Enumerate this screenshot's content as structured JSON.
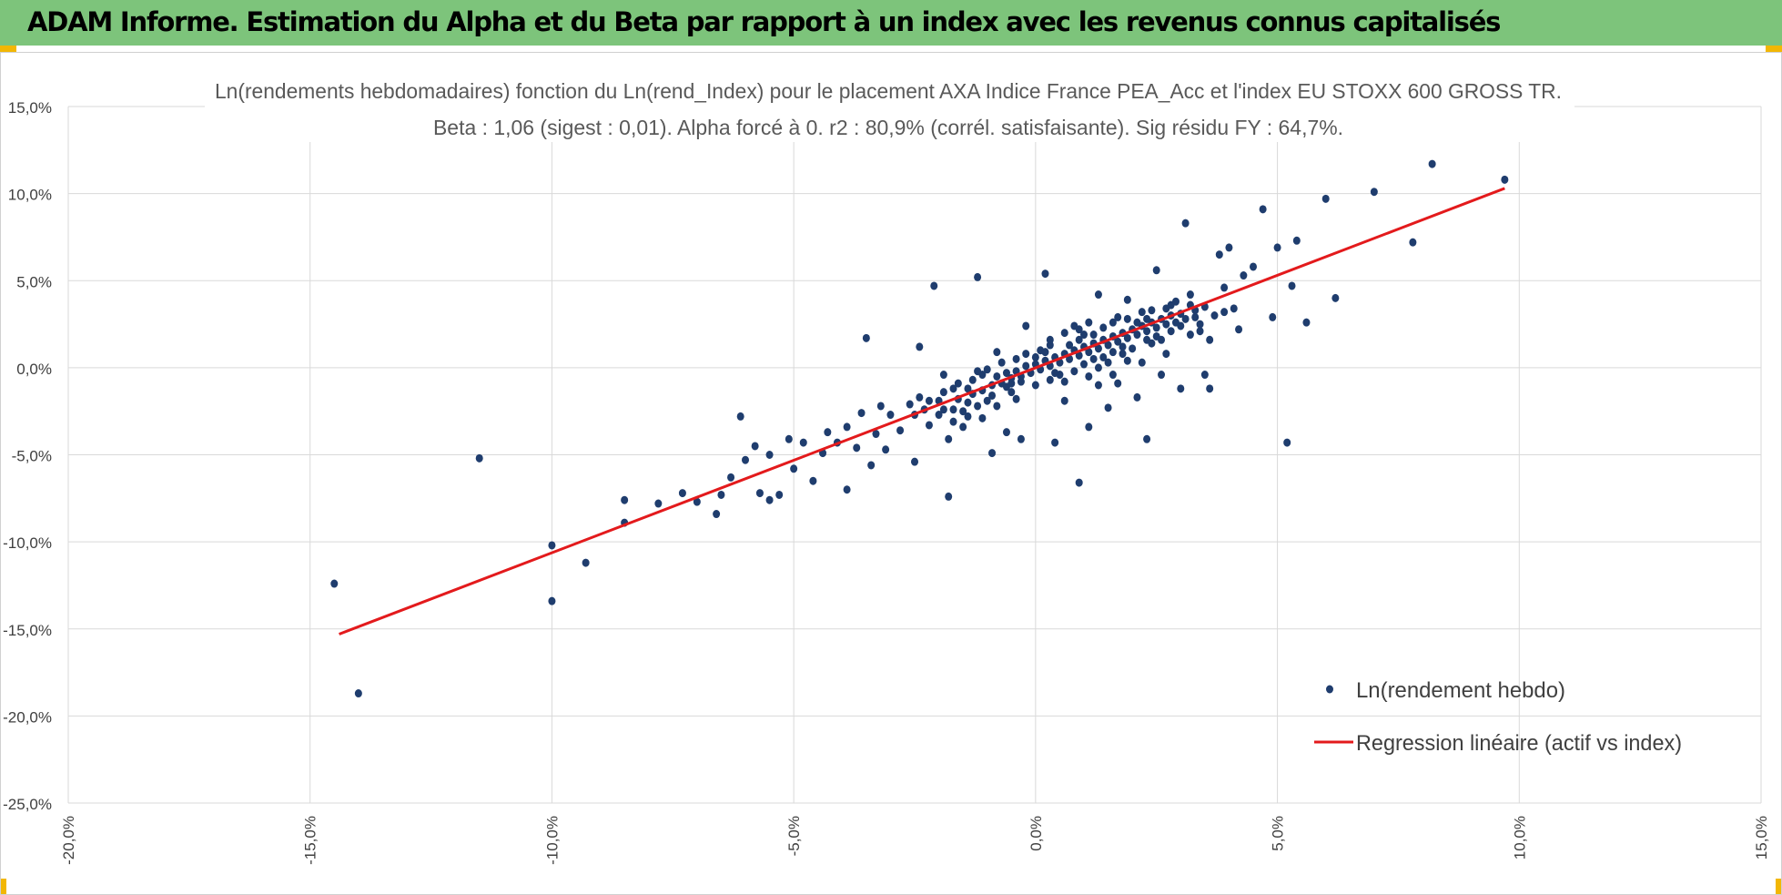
{
  "header": {
    "title": "ADAM Informe. Estimation du Alpha et du Beta par rapport à un index avec les revenus connus capitalisés"
  },
  "colors": {
    "header_bg": "#7dc47b",
    "corner_accent": "#f2b705",
    "points": "#1f3d6e",
    "regression": "#e31a1c",
    "grid": "#d9d9d9"
  },
  "chart_data": {
    "type": "scatter",
    "title": "Ln(rendements hebdomadaires) fonction du Ln(rend_Index) pour le placement AXA Indice France PEA_Acc et l'index EU STOXX 600 GROSS TR.",
    "subtitle": "Beta : 1,06 (sigest : 0,01).  Alpha forcé à 0. r2 : 80,9% (corrél. satisfaisante). Sig résidu FY : 64,7%.",
    "xlabel": "",
    "ylabel": "",
    "xlim": [
      -20,
      15
    ],
    "ylim": [
      -25,
      15
    ],
    "x_ticks": [
      "-20,0%",
      "-15,0%",
      "-10,0%",
      "-5,0%",
      "0,0%",
      "5,0%",
      "10,0%",
      "15,0%"
    ],
    "y_ticks": [
      "15,0%",
      "10,0%",
      "5,0%",
      "0,0%",
      "-5,0%",
      "-10,0%",
      "-15,0%",
      "-20,0%",
      "-25,0%"
    ],
    "grid": true,
    "legend_position": "bottom-right",
    "series": [
      {
        "name": "Ln(rendement hebdo)",
        "kind": "points",
        "points": [
          [
            -14.5,
            -12.4
          ],
          [
            -14.0,
            -18.7
          ],
          [
            -11.5,
            -5.2
          ],
          [
            -10.0,
            -10.2
          ],
          [
            -10.0,
            -13.4
          ],
          [
            -9.3,
            -11.2
          ],
          [
            -8.5,
            -7.6
          ],
          [
            -8.5,
            -8.9
          ],
          [
            -7.8,
            -7.8
          ],
          [
            -7.3,
            -7.2
          ],
          [
            -7.0,
            -7.7
          ],
          [
            -6.6,
            -8.4
          ],
          [
            -6.5,
            -7.3
          ],
          [
            -6.3,
            -6.3
          ],
          [
            -6.1,
            -2.8
          ],
          [
            -6.0,
            -5.3
          ],
          [
            -5.8,
            -4.5
          ],
          [
            -5.7,
            -7.2
          ],
          [
            -5.5,
            -7.6
          ],
          [
            -5.5,
            -5.0
          ],
          [
            -5.3,
            -7.3
          ],
          [
            -5.1,
            -4.1
          ],
          [
            -5.0,
            -5.8
          ],
          [
            -4.8,
            -4.3
          ],
          [
            -4.6,
            -6.5
          ],
          [
            -4.4,
            -4.9
          ],
          [
            -4.3,
            -3.7
          ],
          [
            -4.1,
            -4.3
          ],
          [
            -3.9,
            -3.4
          ],
          [
            -3.9,
            -7.0
          ],
          [
            -3.7,
            -4.6
          ],
          [
            -3.6,
            -2.6
          ],
          [
            -3.5,
            1.7
          ],
          [
            -3.4,
            -5.6
          ],
          [
            -3.3,
            -3.8
          ],
          [
            -3.2,
            -2.2
          ],
          [
            -3.1,
            -4.7
          ],
          [
            -3.0,
            -2.7
          ],
          [
            -2.8,
            -3.6
          ],
          [
            -2.6,
            -2.1
          ],
          [
            -2.5,
            -5.4
          ],
          [
            -2.4,
            -1.7
          ],
          [
            -2.4,
            1.2
          ],
          [
            -2.2,
            -3.3
          ],
          [
            -2.1,
            4.7
          ],
          [
            -2.0,
            -2.7
          ],
          [
            -1.9,
            -0.4
          ],
          [
            -1.8,
            -4.1
          ],
          [
            -1.8,
            -7.4
          ],
          [
            -1.7,
            -2.4
          ],
          [
            -1.6,
            -0.9
          ],
          [
            -1.5,
            -3.4
          ],
          [
            -1.4,
            -1.2
          ],
          [
            -1.2,
            5.2
          ],
          [
            -1.1,
            -2.9
          ],
          [
            -0.9,
            -4.9
          ],
          [
            -0.8,
            0.9
          ],
          [
            -0.6,
            -3.7
          ],
          [
            -0.5,
            -0.9
          ],
          [
            -0.3,
            -4.1
          ],
          [
            -0.2,
            2.4
          ],
          [
            0.2,
            5.4
          ],
          [
            0.4,
            -4.3
          ],
          [
            0.6,
            -1.9
          ],
          [
            0.9,
            -6.6
          ],
          [
            1.0,
            1.9
          ],
          [
            1.1,
            -3.4
          ],
          [
            1.3,
            4.2
          ],
          [
            1.5,
            -2.3
          ],
          [
            1.7,
            -0.9
          ],
          [
            1.9,
            3.9
          ],
          [
            2.1,
            -1.7
          ],
          [
            2.3,
            -4.1
          ],
          [
            2.5,
            5.6
          ],
          [
            2.6,
            -0.4
          ],
          [
            2.8,
            3.6
          ],
          [
            3.0,
            -1.2
          ],
          [
            3.1,
            8.3
          ],
          [
            3.2,
            4.2
          ],
          [
            3.3,
            2.9
          ],
          [
            3.5,
            -0.4
          ],
          [
            3.6,
            -1.2
          ],
          [
            3.8,
            6.5
          ],
          [
            3.9,
            4.6
          ],
          [
            4.0,
            6.9
          ],
          [
            4.1,
            3.4
          ],
          [
            4.2,
            2.2
          ],
          [
            4.3,
            5.3
          ],
          [
            4.5,
            5.8
          ],
          [
            4.7,
            9.1
          ],
          [
            4.9,
            2.9
          ],
          [
            5.0,
            6.9
          ],
          [
            5.2,
            -4.3
          ],
          [
            5.3,
            4.7
          ],
          [
            5.4,
            7.3
          ],
          [
            5.6,
            2.6
          ],
          [
            6.0,
            9.7
          ],
          [
            6.2,
            4.0
          ],
          [
            7.0,
            10.1
          ],
          [
            7.8,
            7.2
          ],
          [
            8.2,
            11.7
          ],
          [
            9.7,
            10.8
          ],
          [
            -1.6,
            -1.8
          ],
          [
            -1.3,
            -1.5
          ],
          [
            -1.1,
            -1.3
          ],
          [
            -0.9,
            -1.0
          ],
          [
            -0.8,
            -0.5
          ],
          [
            -0.7,
            -0.9
          ],
          [
            -0.6,
            -0.3
          ],
          [
            -0.5,
            -0.6
          ],
          [
            -0.4,
            -0.2
          ],
          [
            -0.3,
            -0.5
          ],
          [
            -0.2,
            0.1
          ],
          [
            -0.1,
            -0.3
          ],
          [
            0.0,
            0.2
          ],
          [
            0.1,
            -0.1
          ],
          [
            0.2,
            0.4
          ],
          [
            0.3,
            0.1
          ],
          [
            0.4,
            0.6
          ],
          [
            0.5,
            0.3
          ],
          [
            0.6,
            0.8
          ],
          [
            0.7,
            0.5
          ],
          [
            0.8,
            1.0
          ],
          [
            0.9,
            0.7
          ],
          [
            1.0,
            1.2
          ],
          [
            1.1,
            0.9
          ],
          [
            1.2,
            1.4
          ],
          [
            1.3,
            1.1
          ],
          [
            1.4,
            1.6
          ],
          [
            1.5,
            1.3
          ],
          [
            1.6,
            1.8
          ],
          [
            1.7,
            1.5
          ],
          [
            1.8,
            2.0
          ],
          [
            1.9,
            1.7
          ],
          [
            2.0,
            2.2
          ],
          [
            2.1,
            1.9
          ],
          [
            2.2,
            2.4
          ],
          [
            2.3,
            2.1
          ],
          [
            2.4,
            2.6
          ],
          [
            2.5,
            2.3
          ],
          [
            2.6,
            2.8
          ],
          [
            2.7,
            2.5
          ],
          [
            2.8,
            3.0
          ],
          [
            2.9,
            2.6
          ],
          [
            3.0,
            3.1
          ],
          [
            3.1,
            2.8
          ],
          [
            3.3,
            3.3
          ],
          [
            3.5,
            3.5
          ],
          [
            -1.5,
            -2.5
          ],
          [
            -1.2,
            -2.2
          ],
          [
            -1.0,
            -0.1
          ],
          [
            -0.7,
            0.3
          ],
          [
            -0.4,
            0.5
          ],
          [
            0.1,
            1.0
          ],
          [
            0.3,
            1.3
          ],
          [
            0.5,
            -0.4
          ],
          [
            0.8,
            -0.2
          ],
          [
            1.0,
            0.2
          ],
          [
            1.2,
            0.5
          ],
          [
            1.4,
            2.3
          ],
          [
            1.6,
            2.6
          ],
          [
            1.8,
            0.8
          ],
          [
            2.0,
            1.1
          ],
          [
            2.2,
            3.2
          ],
          [
            2.4,
            1.4
          ],
          [
            2.6,
            1.6
          ],
          [
            -2.0,
            -1.9
          ],
          [
            -1.9,
            -2.4
          ],
          [
            -1.7,
            -1.2
          ],
          [
            -1.4,
            -2.0
          ],
          [
            -1.0,
            -1.9
          ],
          [
            -0.5,
            -1.4
          ],
          [
            0.0,
            -1.0
          ],
          [
            0.3,
            -0.7
          ],
          [
            0.6,
            2.0
          ],
          [
            0.9,
            2.2
          ],
          [
            1.1,
            -0.5
          ],
          [
            1.3,
            0.0
          ],
          [
            1.5,
            0.3
          ],
          [
            1.7,
            2.9
          ],
          [
            1.9,
            0.4
          ],
          [
            2.3,
            2.8
          ],
          [
            2.7,
            3.4
          ],
          [
            3.2,
            1.9
          ],
          [
            3.4,
            2.1
          ],
          [
            3.7,
            3.0
          ],
          [
            -2.5,
            -2.7
          ],
          [
            -2.3,
            -2.4
          ],
          [
            -2.2,
            -1.9
          ],
          [
            -1.9,
            -1.4
          ],
          [
            -1.3,
            -0.7
          ],
          [
            -1.1,
            -0.4
          ],
          [
            -0.9,
            -1.6
          ],
          [
            -0.6,
            -1.1
          ],
          [
            -0.3,
            -0.8
          ],
          [
            0.0,
            0.6
          ],
          [
            0.2,
            0.9
          ],
          [
            0.4,
            -0.3
          ],
          [
            0.7,
            1.3
          ],
          [
            0.9,
            1.6
          ],
          [
            1.2,
            1.9
          ],
          [
            1.4,
            0.6
          ],
          [
            1.6,
            0.9
          ],
          [
            1.8,
            1.2
          ],
          [
            2.1,
            2.6
          ],
          [
            2.3,
            1.6
          ],
          [
            2.5,
            1.8
          ],
          [
            2.8,
            2.1
          ],
          [
            3.0,
            2.4
          ],
          [
            3.2,
            3.6
          ],
          [
            -1.7,
            -3.1
          ],
          [
            -1.4,
            -2.8
          ],
          [
            -1.2,
            -0.2
          ],
          [
            -0.8,
            -2.2
          ],
          [
            -0.4,
            -1.8
          ],
          [
            -0.2,
            0.8
          ],
          [
            0.3,
            1.6
          ],
          [
            0.6,
            -0.8
          ],
          [
            0.8,
            2.4
          ],
          [
            1.1,
            2.6
          ],
          [
            1.3,
            -1.0
          ],
          [
            1.6,
            -0.4
          ],
          [
            1.9,
            2.8
          ],
          [
            2.2,
            0.3
          ],
          [
            2.4,
            3.3
          ],
          [
            2.7,
            0.8
          ],
          [
            2.9,
            3.8
          ],
          [
            3.4,
            2.5
          ],
          [
            3.6,
            1.6
          ],
          [
            3.9,
            3.2
          ]
        ]
      },
      {
        "name": "Regression linéaire (actif vs index)",
        "kind": "line",
        "points": [
          [
            -14.4,
            -15.3
          ],
          [
            9.7,
            10.3
          ]
        ]
      }
    ]
  }
}
